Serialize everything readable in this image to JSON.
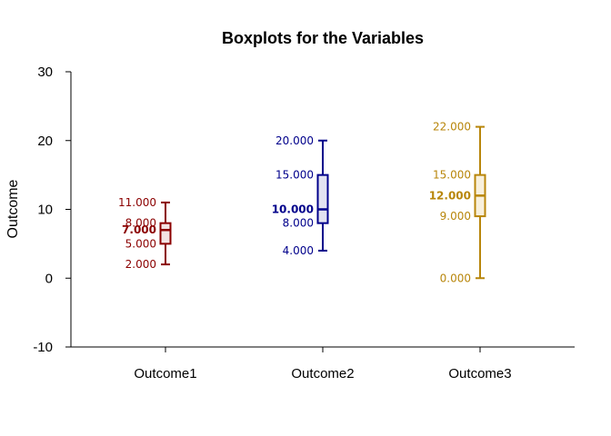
{
  "chart_data": {
    "type": "boxplot",
    "title": "Boxplots for the Variables",
    "xlabel": "",
    "ylabel": "Outcome",
    "ylim": [
      -10,
      30
    ],
    "yticks": [
      "-10",
      "0",
      "10",
      "20",
      "30"
    ],
    "grid": false,
    "series": [
      {
        "category": "Outcome1",
        "color": "#8B0000",
        "fill": "#f3e4e4",
        "min": 2,
        "q1": 5,
        "median": 7,
        "mean": 7,
        "q3": 8,
        "max": 11,
        "labels": {
          "min": "2.000",
          "q1": "5.000",
          "median": "7.000",
          "q3": "8.000",
          "max": "11.000"
        }
      },
      {
        "category": "Outcome2",
        "color": "#00008B",
        "fill": "#e2e2f1",
        "min": 4,
        "q1": 8,
        "median": 10,
        "mean": 10,
        "q3": 15,
        "max": 20,
        "labels": {
          "min": "4.000",
          "q1": "8.000",
          "median": "10.000",
          "q3": "15.000",
          "max": "20.000"
        }
      },
      {
        "category": "Outcome3",
        "color": "#B8860B",
        "fill": "#f8f0dc",
        "min": 0,
        "q1": 9,
        "median": 12,
        "mean": 12,
        "q3": 15,
        "max": 22,
        "labels": {
          "min": "0.000",
          "q1": "9.000",
          "median": "12.000",
          "q3": "15.000",
          "max": "22.000"
        }
      }
    ]
  }
}
